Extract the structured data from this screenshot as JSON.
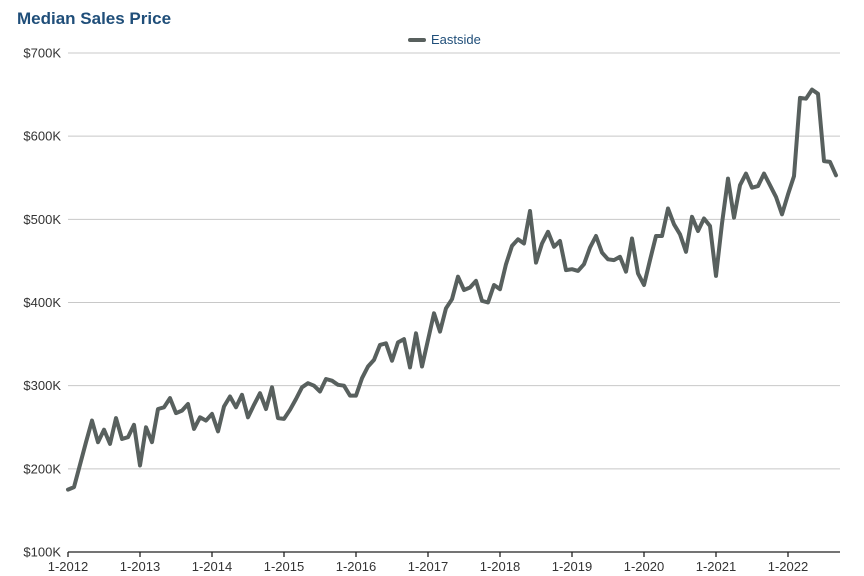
{
  "colors": {
    "title": "#1f4e79",
    "series": "#58605e",
    "grid": "#c8c8c8",
    "axis": "#222222"
  },
  "chart_data": {
    "type": "line",
    "title": "Median Sales Price",
    "legend_position": "top-center",
    "grid": true,
    "xlabel": "",
    "ylabel": "",
    "x_ticks": [
      "1-2012",
      "1-2013",
      "1-2014",
      "1-2015",
      "1-2016",
      "1-2017",
      "1-2018",
      "1-2019",
      "1-2020",
      "1-2021",
      "1-2022"
    ],
    "y_ticks": [
      "$100K",
      "$200K",
      "$300K",
      "$400K",
      "$500K",
      "$600K",
      "$700K"
    ],
    "y_tick_values": [
      100000,
      200000,
      300000,
      400000,
      500000,
      600000,
      700000
    ],
    "ylim": [
      100000,
      700000
    ],
    "x_start": "1-2012",
    "series": [
      {
        "name": "Eastside",
        "values": [
          175000,
          178000,
          205000,
          232000,
          258000,
          232000,
          247000,
          230000,
          261000,
          236000,
          238000,
          253000,
          204000,
          250000,
          232000,
          272000,
          274000,
          285000,
          267000,
          270000,
          278000,
          248000,
          262000,
          258000,
          266000,
          245000,
          275000,
          287000,
          274000,
          289000,
          262000,
          277000,
          291000,
          272000,
          298000,
          261000,
          260000,
          271000,
          284000,
          298000,
          303000,
          300000,
          293000,
          308000,
          306000,
          301000,
          300000,
          288000,
          288000,
          309000,
          323000,
          331000,
          349000,
          351000,
          330000,
          352000,
          356000,
          322000,
          363000,
          323000,
          355000,
          387000,
          365000,
          393000,
          404000,
          431000,
          415000,
          418000,
          426000,
          402000,
          400000,
          421000,
          416000,
          446000,
          468000,
          476000,
          471000,
          510000,
          448000,
          471000,
          485000,
          467000,
          474000,
          439000,
          440000,
          438000,
          446000,
          466000,
          480000,
          460000,
          452000,
          451000,
          455000,
          437000,
          477000,
          435000,
          421000,
          451000,
          480000,
          480000,
          513000,
          494000,
          482000,
          461000,
          503000,
          486000,
          501000,
          492000,
          432000,
          495000,
          549000,
          502000,
          541000,
          555000,
          538000,
          540000,
          555000,
          541000,
          527000,
          506000,
          530000,
          552000,
          646000,
          645000,
          656000,
          651000,
          570000,
          569000,
          553000
        ]
      }
    ]
  }
}
